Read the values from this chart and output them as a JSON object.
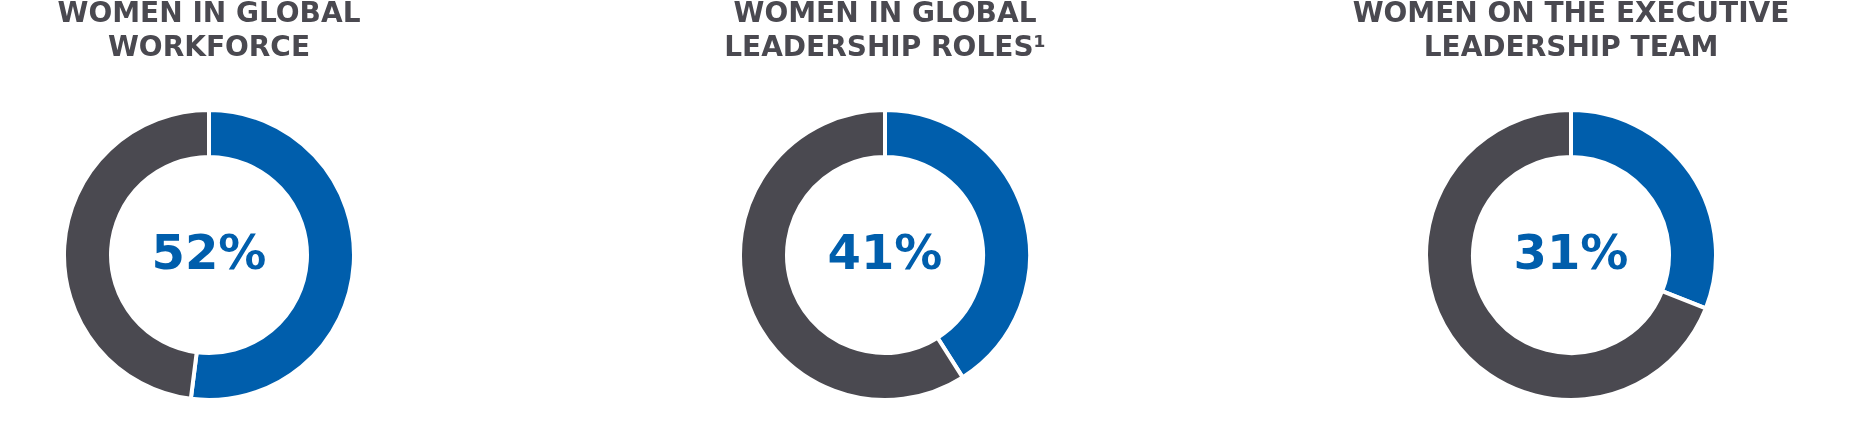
{
  "chart_data": [
    {
      "type": "donut",
      "title": "WOMEN IN GLOBAL WORKFORCE",
      "categories": [
        null,
        null
      ],
      "values": [
        52,
        48
      ],
      "colors": [
        "#005eac",
        "#4a4950"
      ],
      "value_labels": [
        "52%",
        null
      ]
    },
    {
      "type": "donut",
      "title": "WOMEN IN GLOBAL LEADERSHIP ROLES¹",
      "categories": [
        null,
        null
      ],
      "values": [
        41,
        59
      ],
      "colors": [
        "#005eac",
        "#4a4950"
      ],
      "value_labels": [
        "41%",
        null
      ]
    },
    {
      "type": "donut",
      "title": "WOMEN ON THE EXECUTIVE LEADERSHIP TEAM",
      "categories": [
        null,
        null
      ],
      "values": [
        31,
        69
      ],
      "colors": [
        "#005eac",
        "#4a4950"
      ],
      "value_labels": [
        "31%",
        null
      ]
    }
  ]
}
